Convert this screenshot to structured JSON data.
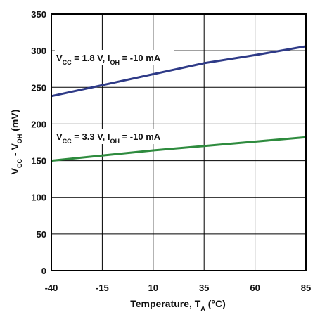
{
  "chart_data": {
    "type": "line",
    "xlabel": "Temperature, T_A (°C)",
    "ylabel": "V_CC - V_OH (mV)",
    "xlim": [
      -40,
      85
    ],
    "ylim": [
      0,
      350
    ],
    "xticks": [
      -40,
      -15,
      10,
      35,
      60,
      85
    ],
    "yticks": [
      0,
      50,
      100,
      150,
      200,
      250,
      300,
      350
    ],
    "grid": true,
    "series": [
      {
        "annotation": "V_CC = 1.8 V, I_OH = -10 mA",
        "color": "#2e3a87",
        "x": [
          -40,
          -15,
          10,
          35,
          60,
          85
        ],
        "y": [
          238,
          253,
          268,
          283,
          294,
          306
        ]
      },
      {
        "annotation": "V_CC = 3.3 V, I_OH = -10 mA",
        "color": "#2e8b3e",
        "x": [
          -40,
          -15,
          10,
          35,
          60,
          85
        ],
        "y": [
          150,
          157,
          164,
          170,
          176,
          182
        ]
      }
    ]
  }
}
